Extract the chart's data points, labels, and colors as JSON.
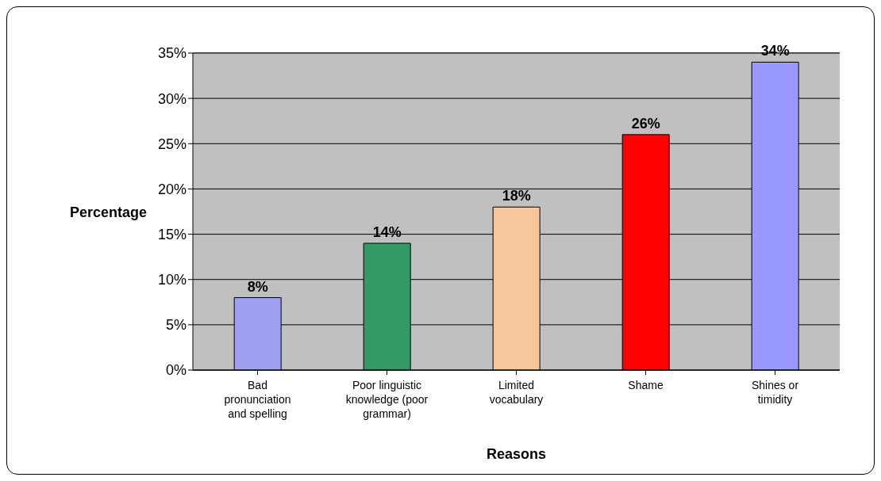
{
  "chart_data": {
    "type": "bar",
    "xlabel": "Reasons",
    "ylabel": "Percentage",
    "categories": [
      "Bad pronunciation and spelling",
      "Poor linguistic knowledge (poor grammar)",
      "Limited vocabulary",
      "Shame",
      "Shines or timidity"
    ],
    "values": [
      8,
      14,
      18,
      26,
      34
    ],
    "value_labels": [
      "8%",
      "14%",
      "18%",
      "26%",
      "34%"
    ],
    "colors": [
      "#a0a0f0",
      "#339966",
      "#f5c79a",
      "#ff0000",
      "#9999ff"
    ],
    "ylim": [
      0,
      35
    ],
    "yticks": [
      {
        "value": 0,
        "label": "0%"
      },
      {
        "value": 5,
        "label": "5%"
      },
      {
        "value": 10,
        "label": "10%"
      },
      {
        "value": 15,
        "label": "15%"
      },
      {
        "value": 20,
        "label": "20%"
      },
      {
        "value": 25,
        "label": "25%"
      },
      {
        "value": 30,
        "label": "30%"
      },
      {
        "value": 35,
        "label": "35%"
      }
    ],
    "grid": "y"
  }
}
